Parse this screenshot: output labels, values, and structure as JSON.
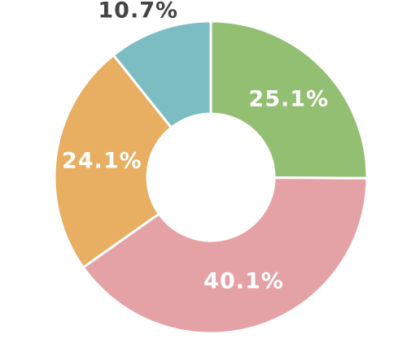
{
  "chart_data": {
    "type": "donut",
    "values": [
      25.1,
      40.1,
      24.1,
      10.7
    ],
    "value_labels": [
      "25.1%",
      "40.1%",
      "24.1%",
      "10.7%"
    ],
    "colors": [
      "#93bf73",
      "#e5a2a6",
      "#e8ae61",
      "#7bbdc2"
    ]
  }
}
